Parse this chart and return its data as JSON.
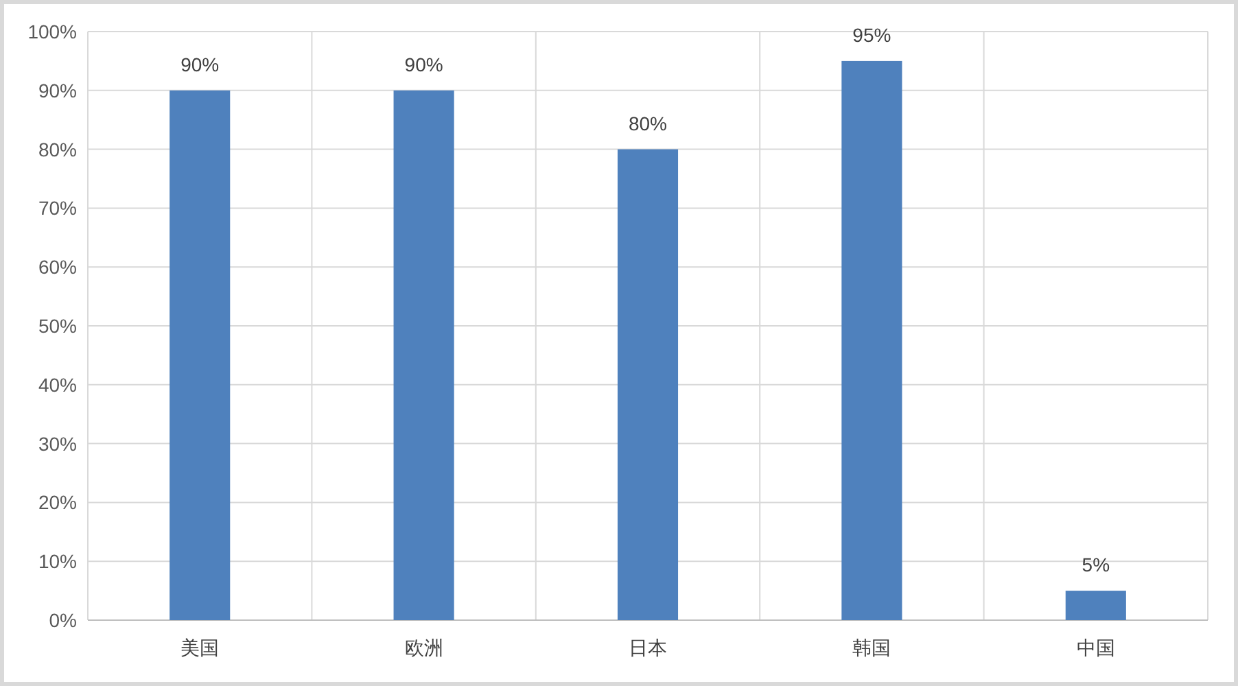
{
  "chart_data": {
    "type": "bar",
    "categories": [
      "美国",
      "欧洲",
      "日本",
      "韩国",
      "中国"
    ],
    "values": [
      90,
      90,
      80,
      95,
      5
    ],
    "value_labels": [
      "90%",
      "90%",
      "80%",
      "95%",
      "5%"
    ],
    "color": "#4f81bd",
    "ylim": [
      0,
      100
    ],
    "yticks": [
      {
        "value": 0,
        "label": "0%"
      },
      {
        "value": 10,
        "label": "10%"
      },
      {
        "value": 20,
        "label": "20%"
      },
      {
        "value": 30,
        "label": "30%"
      },
      {
        "value": 40,
        "label": "40%"
      },
      {
        "value": 50,
        "label": "50%"
      },
      {
        "value": 60,
        "label": "60%"
      },
      {
        "value": 70,
        "label": "70%"
      },
      {
        "value": 80,
        "label": "80%"
      },
      {
        "value": 90,
        "label": "90%"
      },
      {
        "value": 100,
        "label": "100%"
      }
    ],
    "grid": true
  }
}
